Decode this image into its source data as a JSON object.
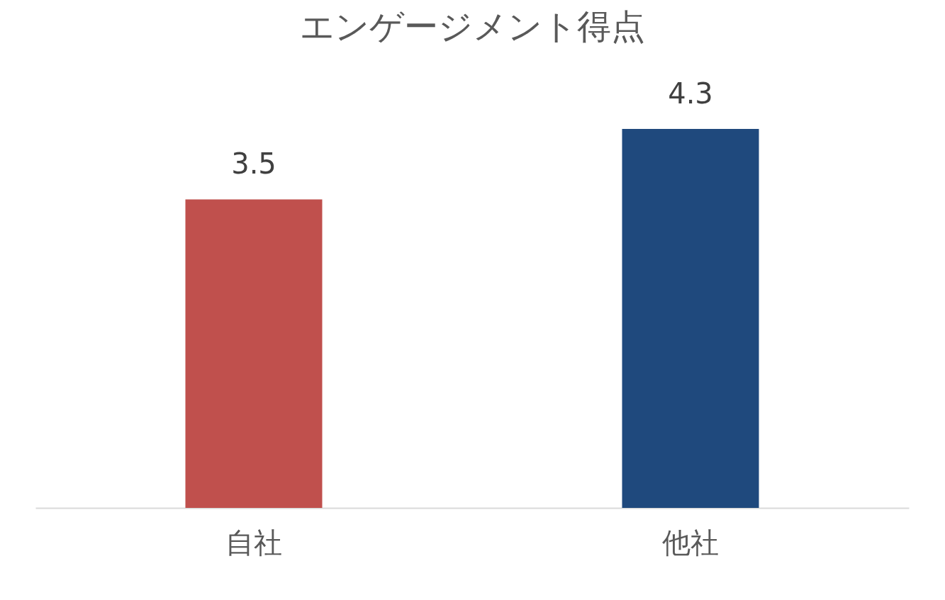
{
  "chart_data": {
    "type": "bar",
    "title": "エンゲージメント得点",
    "categories": [
      "自社",
      "他社"
    ],
    "values": [
      3.5,
      4.3
    ],
    "colors": [
      "#c0504d",
      "#1f497d"
    ],
    "data_labels": true,
    "grid": false,
    "tick_labels": "x"
  }
}
